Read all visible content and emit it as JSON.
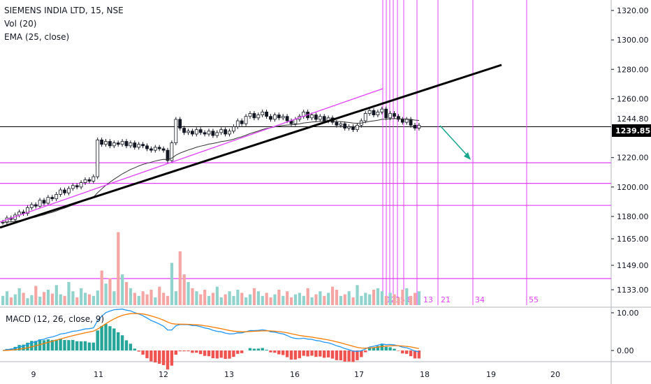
{
  "header": {
    "symbol_title": "SIEMENS INDIA LTD, 15, NSE",
    "volume_label": "Vol (20)",
    "ema_label": "EMA (25, close)",
    "macd_label": "MACD (12, 26, close, 9)"
  },
  "colors": {
    "up": "#26a69a",
    "down": "#ef5350",
    "candle": "#131722",
    "trend_black": "#000000",
    "magenta": "#e040fb",
    "arrow": "#19a78f",
    "macd_line": "#2196f3",
    "signal_line": "#f57c00",
    "hist_up": "#26a69a",
    "hist_down": "#ef5350",
    "price_badge_bg": "#000000"
  },
  "chart_data": [
    {
      "type": "candlestick",
      "title": "SIEMENS INDIA LTD, 15, NSE",
      "x_tick_labels": [
        "9",
        "11",
        "12",
        "13",
        "16",
        "17",
        "18",
        "19",
        "20"
      ],
      "y_axis_labels": [
        "1320.00",
        "1300.00",
        "1280.00",
        "1260.00",
        "1244.80",
        "1239.85",
        "1220.00",
        "1200.00",
        "1180.00",
        "1165.00",
        "1149.00",
        "1133.00"
      ],
      "price_axis_values": [
        1320,
        1300,
        1280,
        1260,
        1220,
        1200,
        1180
      ],
      "marked_price": 1244.8,
      "last_price": 1239.85,
      "horizontal_levels": [
        1244.8,
        1216.5,
        1202.5,
        1187.5,
        1139.5
      ],
      "trendline": {
        "from": [
          0,
          1171
        ],
        "to": [
          7.7,
          1281
        ]
      },
      "channel_line": {
        "from": [
          0,
          1176
        ],
        "to": [
          5.9,
          1265
        ]
      },
      "fibonacci_labels": [
        "1",
        "2",
        "3",
        "5",
        "8",
        "13",
        "21",
        "34",
        "55"
      ],
      "closes": [
        1176,
        1179,
        1178,
        1181,
        1183,
        1182,
        1186,
        1188,
        1187,
        1191,
        1189,
        1193,
        1192,
        1195,
        1198,
        1196,
        1199,
        1201,
        1200,
        1203,
        1205,
        1204,
        1207,
        1232,
        1229,
        1231,
        1228,
        1230,
        1229,
        1231,
        1228,
        1230,
        1227,
        1229,
        1228,
        1226,
        1225,
        1227,
        1226,
        1225,
        1218,
        1230,
        1246,
        1240,
        1237,
        1238,
        1236,
        1239,
        1237,
        1236,
        1238,
        1235,
        1237,
        1239,
        1236,
        1238,
        1241,
        1245,
        1243,
        1248,
        1250,
        1247,
        1249,
        1251,
        1248,
        1246,
        1249,
        1247,
        1248,
        1245,
        1243,
        1246,
        1248,
        1251,
        1247,
        1249,
        1246,
        1248,
        1245,
        1247,
        1244,
        1242,
        1243,
        1240,
        1241,
        1239,
        1242,
        1245,
        1250,
        1252,
        1249,
        1251,
        1253,
        1247,
        1250,
        1248,
        1246,
        1244,
        1246,
        1242,
        1240,
        1242
      ],
      "xlabel": "",
      "ylabel": ""
    },
    {
      "type": "bar",
      "title": "Vol (20)",
      "y_axis_labels": [
        "1165.00",
        "1149.00",
        "1133.00"
      ],
      "values": [
        12,
        18,
        10,
        14,
        22,
        16,
        9,
        13,
        25,
        11,
        17,
        20,
        15,
        26,
        14,
        12,
        30,
        18,
        10,
        22,
        16,
        14,
        12,
        19,
        45,
        28,
        35,
        18,
        95,
        40,
        30,
        22,
        16,
        12,
        18,
        14,
        20,
        10,
        24,
        16,
        12,
        55,
        18,
        70,
        40,
        30,
        22,
        18,
        14,
        20,
        12,
        16,
        24,
        10,
        14,
        18,
        12,
        20,
        16,
        10,
        14,
        22,
        18,
        12,
        16,
        10,
        14,
        20,
        12,
        18,
        10,
        14,
        16,
        12,
        22,
        10,
        14,
        18,
        12,
        16,
        24,
        20,
        12,
        14,
        18,
        10,
        26,
        12,
        16,
        14,
        20,
        22,
        18,
        12,
        16,
        14,
        10,
        20,
        22,
        12,
        16,
        18
      ]
    },
    {
      "type": "line",
      "title": "MACD (12, 26, close, 9)",
      "x_tick_labels": [
        "9",
        "11",
        "12",
        "13",
        "16",
        "17",
        "18",
        "19",
        "20"
      ],
      "y_axis_labels": [
        "10.00",
        "0.00"
      ],
      "ylim": [
        -3,
        12
      ]
    }
  ]
}
